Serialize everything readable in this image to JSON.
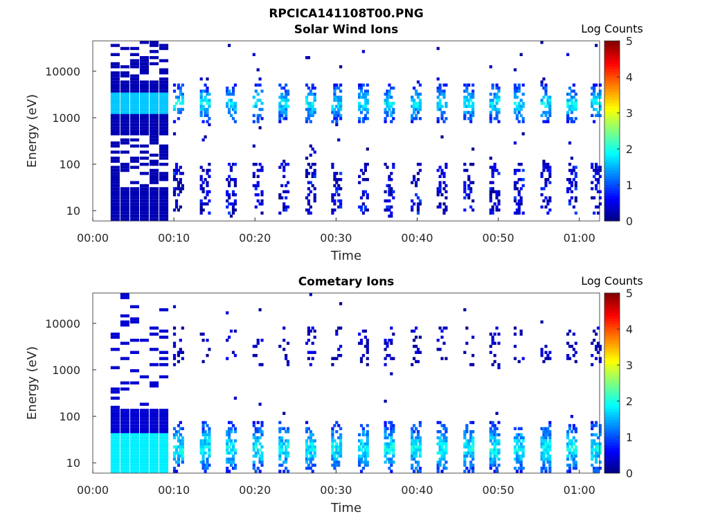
{
  "figure_title": "RPCICA141108T00.PNG",
  "chart_data": [
    {
      "type": "heatmap",
      "title": "Solar Wind Ions",
      "xlabel": "Time",
      "ylabel": "Energy (eV)",
      "x_scale": "time",
      "y_scale": "log",
      "xlim": [
        "00:00",
        "01:02:30"
      ],
      "ylim": [
        6,
        45000
      ],
      "x_ticks": [
        "00:00",
        "00:10",
        "00:20",
        "00:30",
        "00:40",
        "00:50",
        "01:00"
      ],
      "y_ticks": [
        10,
        100,
        1000,
        10000
      ],
      "y_tick_labels": [
        "10",
        "100",
        "1000",
        "10000"
      ],
      "colorbar": {
        "label": "Log Counts",
        "range": [
          0,
          5
        ],
        "ticks": [
          "0",
          "1",
          "2",
          "3",
          "4",
          "5"
        ]
      },
      "bursts_minutes": [
        10.5,
        13.8,
        17.0,
        20.3,
        23.5,
        26.8,
        30.0,
        33.3,
        36.5,
        39.8,
        43.0,
        46.3,
        49.5,
        52.5,
        55.8,
        59.0,
        62.0
      ],
      "peak_energy_ev": 2000,
      "peak_log_counts": 1.8,
      "low_energy_range_ev": [
        8,
        100
      ],
      "low_energy_log_counts": 0.8
    },
    {
      "type": "heatmap",
      "title": "Cometary Ions",
      "xlabel": "Time",
      "ylabel": "Energy (eV)",
      "x_scale": "time",
      "y_scale": "log",
      "xlim": [
        "00:00",
        "01:02:30"
      ],
      "ylim": [
        6,
        45000
      ],
      "x_ticks": [
        "00:00",
        "00:10",
        "00:20",
        "00:30",
        "00:40",
        "00:50",
        "01:00"
      ],
      "y_ticks": [
        10,
        100,
        1000,
        10000
      ],
      "y_tick_labels": [
        "10",
        "100",
        "1000",
        "10000"
      ],
      "colorbar": {
        "label": "Log Counts",
        "range": [
          0,
          5
        ],
        "ticks": [
          "0",
          "1",
          "2",
          "3",
          "4",
          "5"
        ]
      },
      "bursts_minutes": [
        10.5,
        13.8,
        17.0,
        20.3,
        23.5,
        26.8,
        30.0,
        33.3,
        36.5,
        39.8,
        43.0,
        46.3,
        49.5,
        52.5,
        55.8,
        59.0,
        62.0
      ],
      "peak_energy_ev": 20,
      "peak_log_counts": 1.9,
      "high_energy_log_counts": 0.3
    }
  ]
}
